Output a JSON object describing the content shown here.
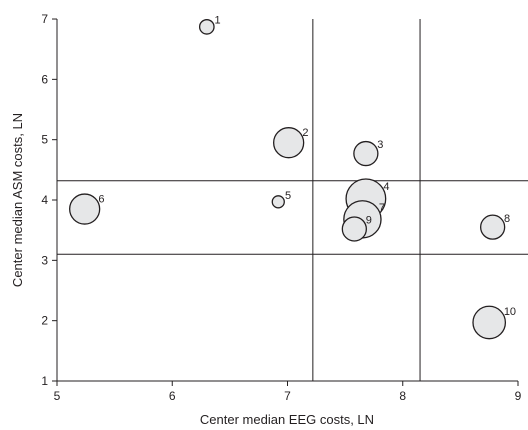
{
  "chart_data": {
    "type": "scatter",
    "xlabel": "Center median EEG costs, LN",
    "ylabel": "Center median ASM costs, LN",
    "xlim": [
      5,
      9
    ],
    "ylim": [
      1,
      7
    ],
    "x_ticks": [
      "5",
      "6",
      "7",
      "8",
      "9"
    ],
    "y_ticks": [
      "1",
      "2",
      "3",
      "4",
      "5",
      "6",
      "7"
    ],
    "reference_lines": {
      "x": [
        7.22,
        8.15
      ],
      "y": [
        3.1,
        4.32
      ]
    },
    "marker_fill": "#e6e7e8",
    "marker_stroke": "#231f20",
    "points": [
      {
        "label": "1",
        "x": 6.3,
        "y": 6.87,
        "size": 1.2
      },
      {
        "label": "2",
        "x": 7.01,
        "y": 4.95,
        "size": 2.5
      },
      {
        "label": "3",
        "x": 7.68,
        "y": 4.77,
        "size": 2.0
      },
      {
        "label": "4",
        "x": 7.68,
        "y": 4.02,
        "size": 3.3
      },
      {
        "label": "5",
        "x": 6.92,
        "y": 3.97,
        "size": 1.0
      },
      {
        "label": "6",
        "x": 5.24,
        "y": 3.85,
        "size": 2.5
      },
      {
        "label": "7",
        "x": 7.65,
        "y": 3.68,
        "size": 3.1
      },
      {
        "label": "8",
        "x": 8.78,
        "y": 3.55,
        "size": 2.0
      },
      {
        "label": "9",
        "x": 7.58,
        "y": 3.52,
        "size": 2.0
      },
      {
        "label": "10",
        "x": 8.75,
        "y": 1.97,
        "size": 2.7
      }
    ]
  }
}
